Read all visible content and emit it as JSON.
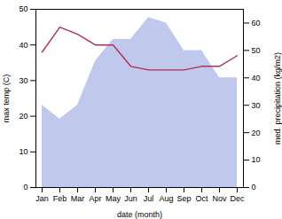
{
  "chart_data": {
    "type": "line",
    "categories": [
      "Jan",
      "Feb",
      "Mar",
      "Apr",
      "May",
      "Jun",
      "Jul",
      "Aug",
      "Sep",
      "Oct",
      "Nov",
      "Dec"
    ],
    "xlabel": "date (month)",
    "ylabel": "max temp (C)",
    "y2label": "med. precipitation (kg/m2)",
    "ylim": [
      0,
      50
    ],
    "yticks": [
      0,
      10,
      20,
      30,
      40,
      50
    ],
    "y2lim": [
      0,
      65
    ],
    "y2ticks": [
      0,
      10,
      20,
      30,
      40,
      50,
      60
    ],
    "series": [
      {
        "type": "area",
        "axis": "y2",
        "color": "#c0c8ee",
        "values": [
          30,
          25,
          30,
          46,
          54,
          54,
          62,
          60,
          50,
          50,
          40,
          40
        ]
      },
      {
        "type": "line",
        "color": "#b03050",
        "values": [
          38,
          45,
          43,
          40,
          40,
          34,
          33,
          33,
          33,
          34,
          34,
          37
        ]
      }
    ]
  }
}
